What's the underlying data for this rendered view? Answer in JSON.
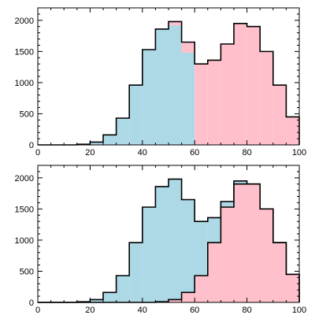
{
  "chart_data": [
    {
      "type": "bar",
      "layout": "stacked histogram",
      "bin_edges": [
        0,
        5,
        10,
        15,
        20,
        25,
        30,
        35,
        40,
        45,
        50,
        55,
        60,
        65,
        70,
        75,
        80,
        85,
        90,
        95,
        100
      ],
      "xlim": [
        0,
        100
      ],
      "ylim": [
        0,
        2200
      ],
      "x_ticks": [
        "0",
        "20",
        "40",
        "60",
        "80",
        "100"
      ],
      "y_ticks": [
        "0",
        "500",
        "1000",
        "1500",
        "2000"
      ],
      "grid": false,
      "series": [
        {
          "color": "#add8e6",
          "values": [
            0,
            0,
            0,
            10,
            45,
            160,
            430,
            960,
            1530,
            1860,
            1920,
            1480,
            0,
            0,
            0,
            0,
            0,
            0,
            0,
            0
          ]
        },
        {
          "color": "#ffc0cb",
          "values": [
            0,
            0,
            0,
            0,
            0,
            0,
            0,
            0,
            0,
            0,
            60,
            170,
            1300,
            1360,
            1620,
            1950,
            1900,
            1500,
            960,
            450
          ]
        }
      ],
      "stacked_totals": [
        0,
        0,
        0,
        10,
        45,
        160,
        430,
        960,
        1530,
        1860,
        1980,
        1650,
        1300,
        1360,
        1620,
        1950,
        1900,
        1500,
        960,
        450
      ],
      "outline": "single black step line over the stacked totals"
    },
    {
      "type": "bar",
      "layout": "stacked histogram",
      "bin_edges": [
        0,
        5,
        10,
        15,
        20,
        25,
        30,
        35,
        40,
        45,
        50,
        55,
        60,
        65,
        70,
        75,
        80,
        85,
        90,
        95,
        100
      ],
      "xlim": [
        0,
        100
      ],
      "ylim": [
        0,
        2200
      ],
      "x_ticks": [
        "0",
        "20",
        "40",
        "60",
        "80",
        "100"
      ],
      "y_ticks": [
        "0",
        "500",
        "1000",
        "1500",
        "2000"
      ],
      "grid": false,
      "series": [
        {
          "color": "#add8e6",
          "values": [
            0,
            0,
            0,
            10,
            45,
            160,
            430,
            960,
            1530,
            1860,
            1980,
            1650,
            1300,
            1360,
            1620,
            1950,
            1900,
            1500,
            960,
            450
          ]
        },
        {
          "color": "#ffc0cb",
          "values": [
            0,
            0,
            0,
            0,
            0,
            0,
            0,
            0,
            0,
            10,
            45,
            160,
            430,
            960,
            1530,
            1900,
            1900,
            1500,
            960,
            450
          ]
        }
      ],
      "outline": "black step line around each series separately"
    }
  ]
}
